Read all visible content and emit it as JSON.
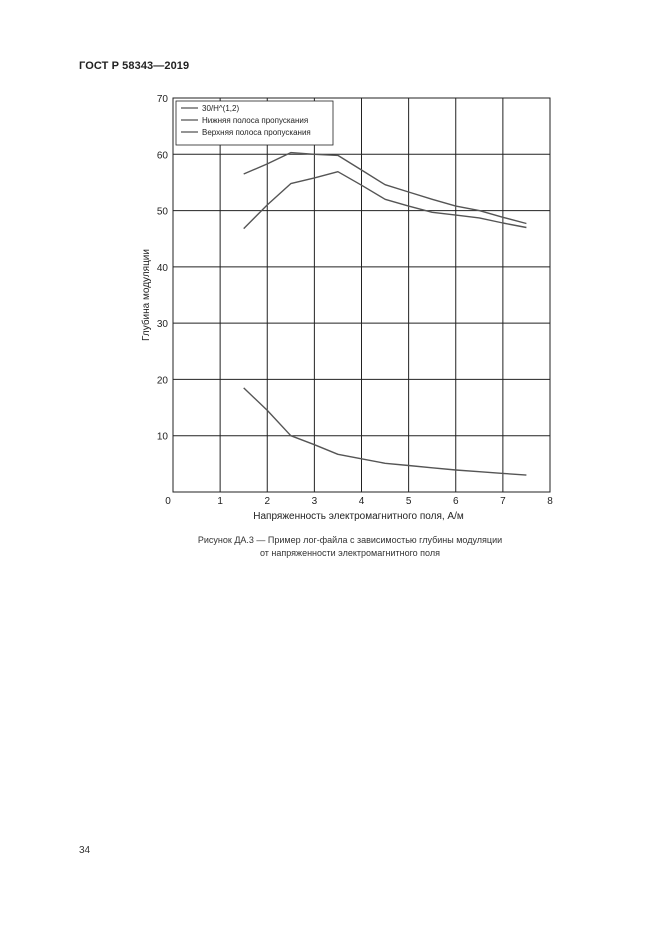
{
  "document": {
    "header": "ГОСТ Р 58343—2019",
    "caption_line1": "Рисунок ДА.3 — Пример лог-файла с зависимостью глубины модуляции",
    "caption_line2": "от напряженности электромагнитного поля",
    "page_number": "34"
  },
  "chart_data": {
    "type": "line",
    "title": "",
    "xlabel": "Напряженность электромагнитного поля, А/м",
    "ylabel": "Глубина модуляции",
    "xlim": [
      0,
      8
    ],
    "ylim": [
      0,
      70
    ],
    "xticks": [
      0,
      1,
      2,
      3,
      4,
      5,
      6,
      7,
      8
    ],
    "yticks": [
      0,
      10,
      20,
      30,
      40,
      50,
      60,
      70
    ],
    "grid": true,
    "legend_position": "top-left",
    "series": [
      {
        "name": "30/H^(1,2)",
        "color": "#555555",
        "x": [
          1.5,
          2.0,
          2.5,
          3.0,
          3.5,
          4.0,
          4.5,
          5.0,
          5.5,
          6.0,
          6.5,
          7.0,
          7.5
        ],
        "y": [
          18.5,
          14.5,
          10.0,
          8.4,
          6.7,
          5.9,
          5.1,
          4.7,
          4.3,
          3.9,
          3.6,
          3.3,
          3.0
        ]
      },
      {
        "name": "Нижняя полоса пропускания",
        "color": "#555555",
        "x": [
          1.5,
          2.0,
          2.5,
          3.0,
          3.5,
          4.0,
          4.5,
          5.0,
          5.5,
          6.0,
          6.5,
          7.0,
          7.5
        ],
        "y": [
          46.8,
          51.0,
          54.8,
          55.8,
          56.9,
          54.5,
          52.0,
          50.8,
          49.7,
          49.2,
          48.7,
          47.8,
          47.0
        ]
      },
      {
        "name": "Верхняя полоса пропускания",
        "color": "#555555",
        "x": [
          1.5,
          2.0,
          2.5,
          3.0,
          3.5,
          4.0,
          4.5,
          5.0,
          5.5,
          6.0,
          6.5,
          7.0,
          7.5
        ],
        "y": [
          56.5,
          58.3,
          60.3,
          60.0,
          59.8,
          57.2,
          54.6,
          53.3,
          52.0,
          50.8,
          50.0,
          48.8,
          47.7
        ]
      }
    ]
  }
}
